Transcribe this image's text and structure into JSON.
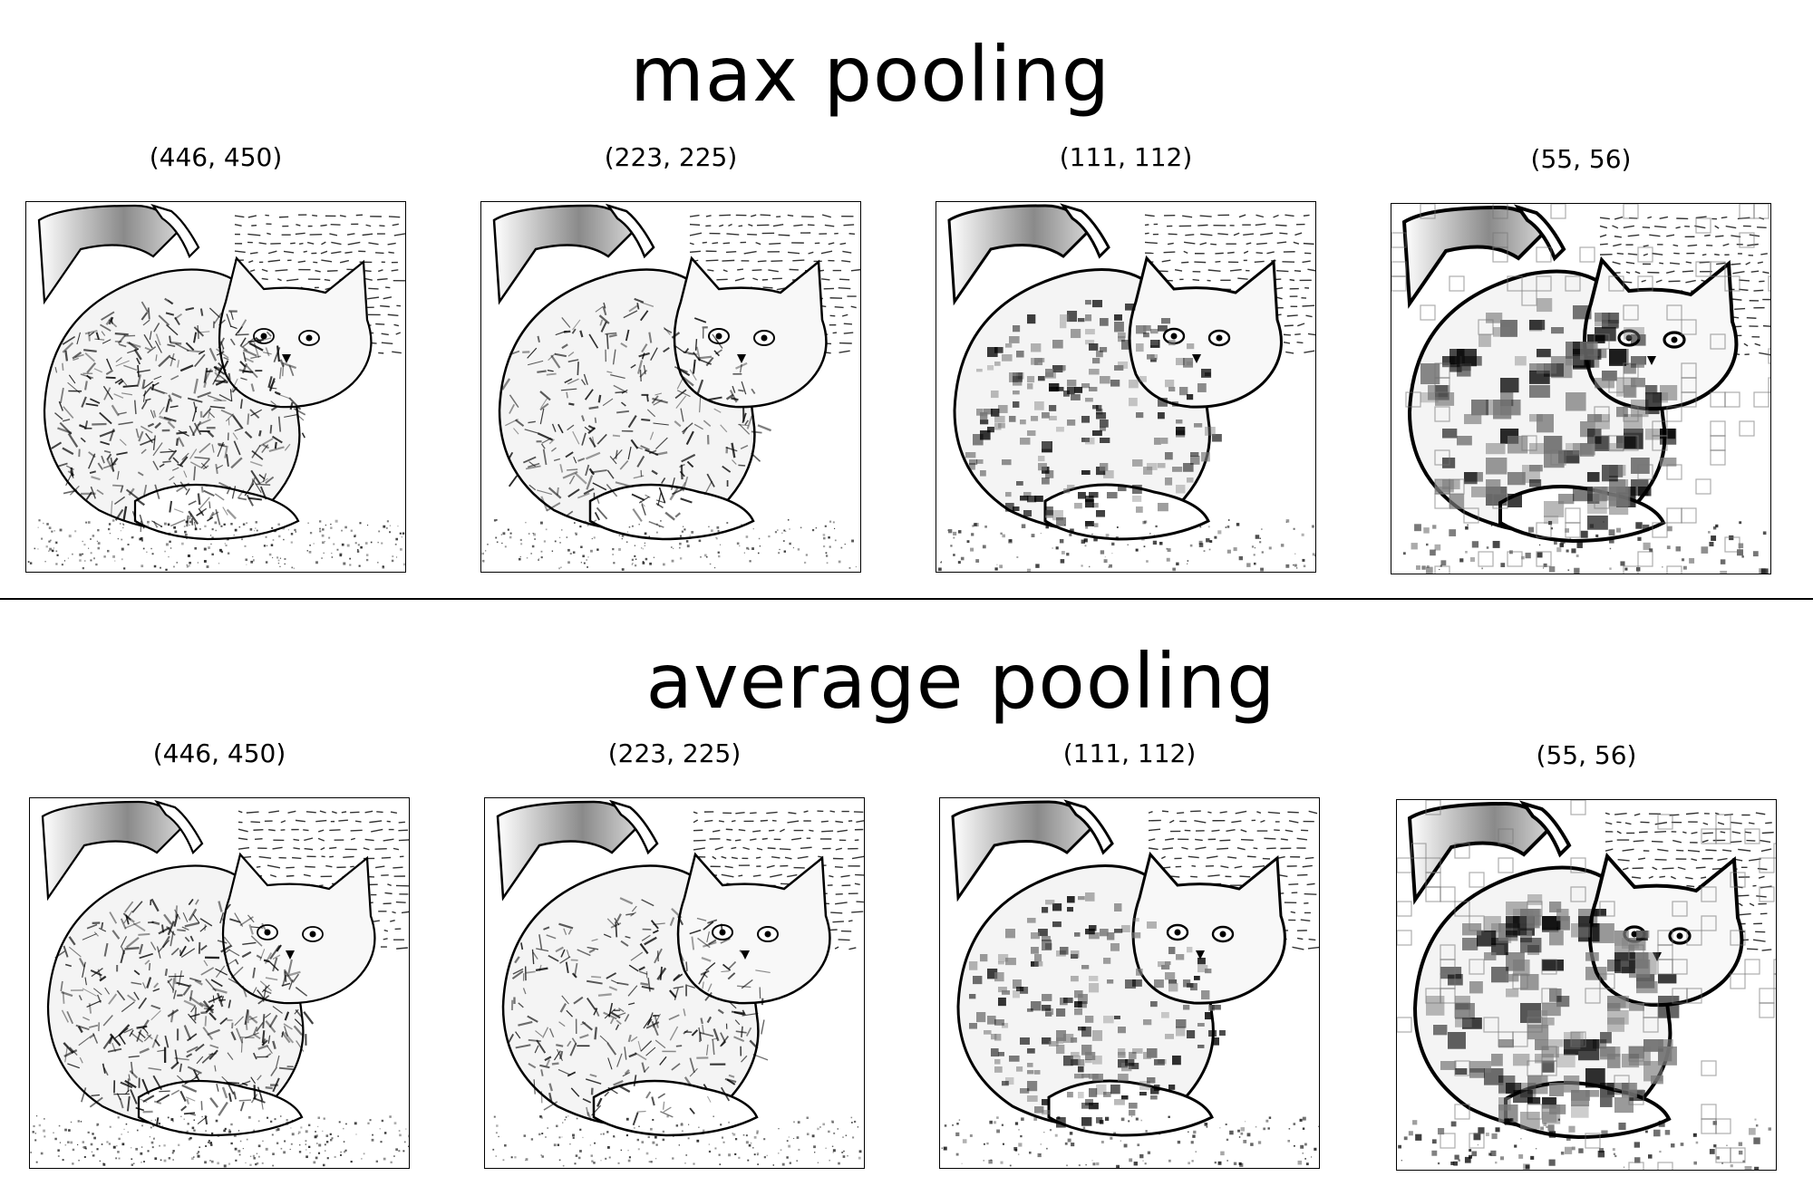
{
  "sections": [
    {
      "id": "max",
      "title": "max pooling",
      "panels": [
        {
          "label": "(446, 450)",
          "detail": 1
        },
        {
          "label": "(223, 225)",
          "detail": 2
        },
        {
          "label": "(111, 112)",
          "detail": 4
        },
        {
          "label": "(55, 56)",
          "detail": 8
        }
      ]
    },
    {
      "id": "avg",
      "title": "average pooling",
      "panels": [
        {
          "label": "(446, 450)",
          "detail": 1
        },
        {
          "label": "(223, 225)",
          "detail": 2
        },
        {
          "label": "(111, 112)",
          "detail": 4
        },
        {
          "label": "(55, 56)",
          "detail": 8
        }
      ]
    }
  ],
  "colors": {
    "ink": "#000000",
    "paper": "#ffffff",
    "shade": "#777777"
  },
  "image_subject_icon": "cat-sketch-icon"
}
